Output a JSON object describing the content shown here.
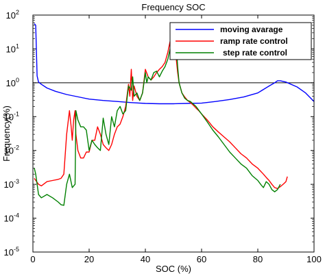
{
  "chart_data": {
    "type": "line",
    "title": "Frequency SOC",
    "xlabel": "SOC (%)",
    "ylabel": "Frequency(%)",
    "xlim": [
      0,
      100
    ],
    "ylim_log10": [
      -5,
      2
    ],
    "yscale": "log",
    "grid": false,
    "legend_position": "top-right",
    "x_tick_labels": [
      "0",
      "20",
      "40",
      "60",
      "80",
      "100"
    ],
    "y_tick_labels": [
      {
        "base": "10",
        "exp": "-5"
      },
      {
        "base": "10",
        "exp": "-4"
      },
      {
        "base": "10",
        "exp": "-3"
      },
      {
        "base": "10",
        "exp": "-2"
      },
      {
        "base": "10",
        "exp": "-1"
      },
      {
        "base": "10",
        "exp": "0"
      },
      {
        "base": "10",
        "exp": "1"
      },
      {
        "base": "10",
        "exp": "2"
      }
    ],
    "reference_line": {
      "y": 1,
      "color": "#000000"
    },
    "series": [
      {
        "name": "moving avarage",
        "color": "#0000ff",
        "x": [
          0.5,
          1,
          1.5,
          2,
          3,
          5,
          8,
          12,
          15,
          20,
          25,
          30,
          35,
          40,
          45,
          50,
          55,
          60,
          65,
          70,
          75,
          80,
          84,
          86,
          87,
          88,
          90,
          94,
          97,
          100
        ],
        "y": [
          56,
          50,
          1.6,
          1.05,
          0.9,
          0.7,
          0.56,
          0.45,
          0.4,
          0.33,
          0.3,
          0.28,
          0.26,
          0.245,
          0.24,
          0.24,
          0.245,
          0.25,
          0.28,
          0.32,
          0.38,
          0.5,
          0.8,
          1.0,
          1.15,
          1.15,
          1.05,
          0.75,
          0.5,
          0.28
        ]
      },
      {
        "name": "ramp rate control",
        "color": "#ff0000",
        "x": [
          0.5,
          1,
          2,
          3,
          5,
          7,
          9,
          10,
          11,
          12,
          13,
          13.6,
          14,
          14.5,
          15,
          15.3,
          16,
          17,
          18,
          19,
          20,
          21,
          22,
          23,
          24,
          25,
          26,
          27,
          28,
          29,
          30,
          31,
          32,
          33,
          34,
          34.5,
          35,
          35.5,
          36,
          37,
          38,
          39,
          40,
          41,
          42,
          43,
          44,
          45,
          46,
          47,
          48,
          49,
          50,
          50.5,
          51,
          51.5,
          52,
          53,
          54,
          55,
          56,
          57,
          58,
          59,
          60,
          62,
          64,
          66,
          68,
          70,
          72,
          74,
          76,
          78,
          80,
          82,
          83,
          84,
          85,
          86,
          87,
          88,
          89,
          90,
          90.5
        ],
        "y": [
          0.0015,
          0.0013,
          0.001,
          0.0009,
          0.0012,
          0.0013,
          0.0014,
          0.0015,
          0.002,
          0.03,
          0.15,
          0.05,
          0.02,
          0.08,
          0.15,
          0.03,
          0.01,
          0.006,
          0.006,
          0.009,
          0.009,
          0.02,
          0.02,
          0.05,
          0.03,
          0.015,
          0.012,
          0.01,
          0.015,
          0.03,
          0.05,
          0.06,
          0.1,
          0.2,
          0.9,
          0.4,
          2.5,
          0.3,
          0.8,
          0.4,
          0.3,
          0.5,
          2.5,
          1.5,
          1.2,
          1.5,
          2.0,
          2.5,
          3.0,
          4.0,
          8.0,
          20.0,
          45.0,
          20.0,
          5.0,
          2.0,
          1.0,
          0.5,
          0.38,
          0.3,
          0.26,
          0.22,
          0.18,
          0.15,
          0.12,
          0.08,
          0.05,
          0.035,
          0.025,
          0.018,
          0.012,
          0.008,
          0.006,
          0.004,
          0.003,
          0.002,
          0.0016,
          0.0013,
          0.001,
          0.0008,
          0.00075,
          0.00085,
          0.001,
          0.0012,
          0.0017
        ]
      },
      {
        "name": "step rate control",
        "color": "#008000",
        "x": [
          0.5,
          1,
          2,
          3,
          5,
          7,
          9,
          10,
          11,
          12,
          13,
          14,
          15,
          15.3,
          16,
          17,
          18,
          19,
          20,
          21,
          22,
          23,
          24,
          25,
          26,
          27,
          28,
          29,
          30,
          31,
          32,
          33,
          34,
          35,
          35.5,
          36,
          37,
          38,
          39,
          40,
          40.5,
          41,
          42,
          43,
          44,
          45,
          46,
          47,
          48,
          49,
          50,
          51,
          51.5,
          52,
          53,
          54,
          55,
          56,
          58,
          60,
          62,
          64,
          66,
          68,
          70,
          72,
          74,
          76,
          78,
          80,
          81,
          82,
          83,
          84,
          85,
          86,
          87,
          88
        ],
        "y": [
          0.003,
          0.002,
          0.0005,
          0.0004,
          0.0005,
          0.0004,
          0.0003,
          0.00025,
          0.00024,
          0.001,
          0.002,
          0.0008,
          0.001,
          0.15,
          0.08,
          0.05,
          0.05,
          0.04,
          0.01,
          0.02,
          0.015,
          0.012,
          0.01,
          0.09,
          0.03,
          0.015,
          0.1,
          0.05,
          0.15,
          0.2,
          0.12,
          0.15,
          0.8,
          0.6,
          1.5,
          0.4,
          0.5,
          0.3,
          0.5,
          2.0,
          1.0,
          1.5,
          1.2,
          2.0,
          2.2,
          1.5,
          2.2,
          3.0,
          5.0,
          12.0,
          50.0,
          12.0,
          3.0,
          1.0,
          0.5,
          0.35,
          0.3,
          0.28,
          0.2,
          0.12,
          0.07,
          0.04,
          0.025,
          0.015,
          0.009,
          0.006,
          0.004,
          0.003,
          0.0018,
          0.0013,
          0.001,
          0.0008,
          0.0012,
          0.001,
          0.0007,
          0.0006,
          0.0007,
          0.001
        ]
      }
    ]
  }
}
